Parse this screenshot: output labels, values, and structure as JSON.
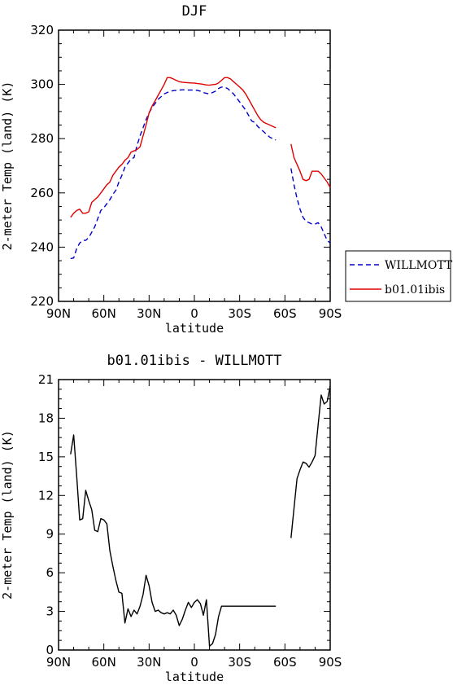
{
  "chart_data": [
    {
      "type": "line",
      "title": "DJF",
      "xlabel": "latitude",
      "ylabel": "2-meter Temp (land) (K)",
      "xlim": [
        90,
        -90
      ],
      "ylim": [
        220,
        320
      ],
      "xticks": [
        90,
        60,
        30,
        0,
        -30,
        -60,
        -90
      ],
      "xtick_labels": [
        "90N",
        "60N",
        "30N",
        "0",
        "30S",
        "60S",
        "90S"
      ],
      "yticks": [
        220,
        240,
        260,
        280,
        300,
        320
      ],
      "ytick_labels": [
        "220",
        "240",
        "260",
        "280",
        "300",
        "320"
      ],
      "legend": "outside-right",
      "series": [
        {
          "name": "WILLMOTT",
          "color": "#0000cc",
          "dash": true,
          "segments": [
            {
              "x": [
                82,
                80,
                78,
                76,
                74,
                72,
                70,
                68,
                66,
                64,
                62,
                60,
                58,
                56,
                54,
                52,
                50,
                48,
                46,
                44,
                42,
                40,
                38,
                36,
                34,
                32,
                30,
                28,
                26,
                24,
                22,
                20,
                18,
                16,
                14,
                12,
                10,
                8,
                6,
                4,
                2,
                0,
                -2,
                -4,
                -6,
                -8,
                -10,
                -12,
                -14,
                -16,
                -18,
                -20,
                -22,
                -24,
                -26,
                -28,
                -30,
                -32,
                -34,
                -36,
                -38,
                -40,
                -42,
                -44,
                -46,
                -48,
                -50,
                -52,
                -54
              ],
              "y": [
                235.8,
                236,
                239.5,
                241.5,
                242.5,
                242.5,
                243.5,
                245.5,
                247.5,
                250.5,
                253.5,
                254.5,
                256,
                257.5,
                259.5,
                261,
                264,
                266.5,
                269.5,
                271,
                272.5,
                273,
                277.5,
                281,
                284,
                287,
                289.5,
                291.5,
                293,
                294.5,
                295.5,
                296.5,
                297,
                297.5,
                297.7,
                297.8,
                297.9,
                298,
                298,
                297.9,
                297.9,
                297.9,
                297.8,
                297.5,
                297,
                296.7,
                296.5,
                297,
                297.5,
                298.5,
                299,
                299,
                298.5,
                297.5,
                296.5,
                295,
                293.5,
                292,
                290.5,
                288.5,
                286.5,
                286,
                284.5,
                283.5,
                282.5,
                281.5,
                280.5,
                280,
                279.5
              ]
            },
            {
              "x": [
                -64,
                -66,
                -68,
                -70,
                -72,
                -74,
                -76,
                -78,
                -80,
                -82,
                -84,
                -86,
                -88,
                -90
              ],
              "y": [
                269,
                263,
                258,
                254,
                251,
                249.5,
                249,
                248.5,
                248.5,
                249,
                247.5,
                245,
                242.5,
                241.5
              ]
            }
          ]
        },
        {
          "name": "b01.01ibis",
          "color": "#e00000",
          "dash": false,
          "segments": [
            {
              "x": [
                82,
                80,
                78,
                76,
                74,
                72,
                70,
                68,
                66,
                64,
                62,
                60,
                58,
                56,
                54,
                52,
                50,
                48,
                46,
                44,
                42,
                40,
                38,
                36,
                34,
                32,
                30,
                28,
                26,
                24,
                22,
                20,
                18,
                16,
                14,
                12,
                10,
                8,
                6,
                4,
                2,
                0,
                -2,
                -4,
                -6,
                -8,
                -10,
                -12,
                -14,
                -16,
                -18,
                -20,
                -22,
                -24,
                -26,
                -28,
                -30,
                -32,
                -34,
                -36,
                -38,
                -40,
                -42,
                -44,
                -46,
                -48,
                -50,
                -52,
                -54
              ],
              "y": [
                251,
                252.5,
                253.5,
                254,
                252.5,
                252.5,
                253,
                256.5,
                257.5,
                258.5,
                260,
                261.5,
                263,
                264,
                266.5,
                268,
                269.5,
                270.5,
                272,
                273,
                275,
                275.5,
                276,
                277,
                281,
                285,
                289.5,
                292,
                294,
                296,
                298,
                300,
                302.5,
                302.5,
                302,
                301.5,
                301,
                300.8,
                300.7,
                300.6,
                300.5,
                300.5,
                300.3,
                300.2,
                300,
                299.8,
                299.7,
                299.9,
                300,
                300.5,
                301.5,
                302.5,
                302.5,
                302,
                301,
                300,
                299,
                298,
                296.5,
                294.5,
                292.5,
                290.5,
                288.5,
                287,
                286,
                285.5,
                285,
                284.5,
                284
              ]
            },
            {
              "x": [
                -64,
                -66,
                -68,
                -70,
                -72,
                -74,
                -76,
                -78,
                -80,
                -82,
                -84,
                -86,
                -88,
                -90
              ],
              "y": [
                278,
                273,
                270.5,
                268,
                265,
                264.5,
                265,
                268,
                268,
                268,
                267,
                265.5,
                264,
                262
              ]
            }
          ]
        }
      ]
    },
    {
      "type": "line",
      "title": "b01.01ibis - WILLMOTT",
      "xlabel": "latitude",
      "ylabel": "2-meter Temp (land) (K)",
      "xlim": [
        90,
        -90
      ],
      "ylim": [
        0,
        21
      ],
      "xticks": [
        90,
        60,
        30,
        0,
        -30,
        -60,
        -90
      ],
      "xtick_labels": [
        "90N",
        "60N",
        "30N",
        "0",
        "30S",
        "60S",
        "90S"
      ],
      "yticks": [
        0,
        3,
        6,
        9,
        12,
        15,
        18,
        21
      ],
      "ytick_labels": [
        "0",
        "3",
        "6",
        "9",
        "12",
        "15",
        "18",
        "21"
      ],
      "series": [
        {
          "name": "",
          "color": "#000000",
          "dash": false,
          "segments": [
            {
              "x": [
                82,
                80,
                78,
                76,
                74,
                72,
                70,
                68,
                66,
                64,
                62,
                60,
                58,
                56,
                54,
                52,
                50,
                48,
                46,
                44,
                42,
                40,
                38,
                36,
                34,
                32,
                30,
                28,
                26,
                24,
                22,
                20,
                18,
                16,
                14,
                12,
                10,
                8,
                6,
                4,
                2,
                0,
                -2,
                -4,
                -6,
                -8,
                -10,
                -12,
                -14,
                -16,
                -18,
                -20,
                -22,
                -24,
                -26,
                -28,
                -30,
                -32,
                -34,
                -36,
                -38,
                -40,
                -42,
                -44,
                -46,
                -48,
                -50,
                -52,
                -54
              ],
              "y": [
                15.2,
                16.7,
                13.5,
                10.1,
                10.2,
                12.4,
                11.6,
                10.9,
                9.3,
                9.2,
                10.2,
                10.1,
                9.8,
                7.7,
                6.5,
                5.4,
                4.5,
                4.4,
                2.1,
                3.2,
                2.6,
                3.1,
                2.8,
                3.4,
                4.3,
                5.8,
                5.0,
                3.7,
                3.0,
                3.1,
                2.9,
                2.8,
                2.9,
                2.8,
                3.1,
                2.7,
                1.9,
                2.4,
                3.1,
                3.7,
                3.3,
                3.7,
                3.9,
                3.6,
                2.7,
                3.9,
                0.3,
                0.5,
                1.2,
                2.6,
                3.4,
                3.4,
                3.4,
                3.4,
                3.4,
                3.4,
                3.4,
                3.4,
                3.4,
                3.4,
                3.4,
                3.4,
                3.4,
                3.4,
                3.4,
                3.4,
                3.4,
                3.4,
                3.4
              ]
            },
            {
              "x": [
                -64,
                -66,
                -68,
                -70,
                -72,
                -74,
                -76,
                -78,
                -80,
                -82,
                -84,
                -86,
                -88,
                -90
              ],
              "y": [
                8.7,
                11.0,
                13.3,
                14.0,
                14.6,
                14.5,
                14.2,
                14.6,
                15.1,
                17.5,
                19.8,
                19.1,
                19.3,
                20.5
              ]
            }
          ]
        }
      ]
    }
  ]
}
